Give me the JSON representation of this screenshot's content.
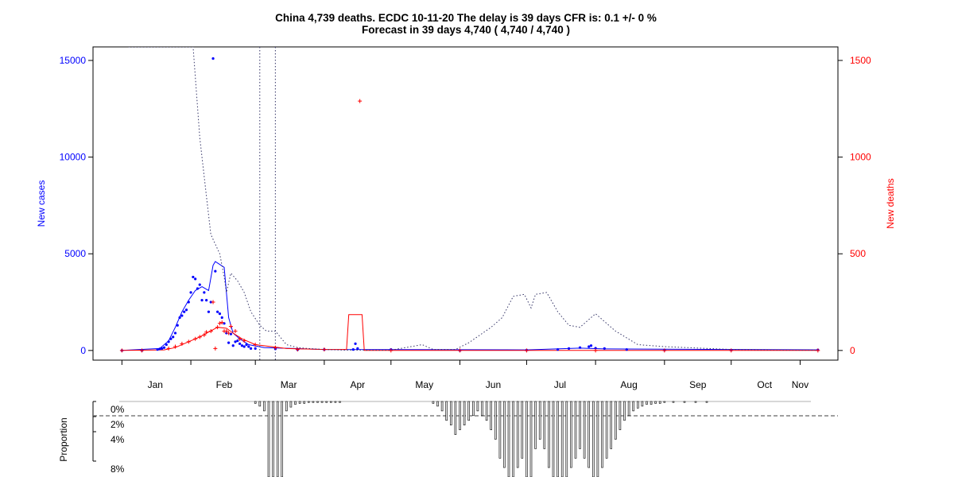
{
  "title": {
    "line1": "China 4,739 deaths. ECDC 10-11-20 The delay is 39 days CFR is: 0.1 +/- 0 %",
    "line2": "Forecast in 39 days 4,740 ( 4,740 / 4,740 )"
  },
  "colors": {
    "cases": "#0000ff",
    "deaths": "#ff0000",
    "dotted": "#333366",
    "axis": "#000000",
    "bar_fill": "#eeeeee",
    "dashed": "#666666"
  },
  "chart_data": [
    {
      "type": "scatter",
      "title": "China 4,739 deaths. ECDC 10-11-20 The delay is 39 days CFR is: 0.1 +/- 0 %",
      "subtitle": "Forecast in 39 days 4,740 ( 4,740 / 4,740 )",
      "x_type": "date",
      "x_start": "2020-01-01",
      "xlim": [
        "2019-12-19",
        "2020-11-18"
      ],
      "month_labels": [
        "Jan",
        "Feb",
        "Mar",
        "Apr",
        "May",
        "Jun",
        "Jul",
        "Aug",
        "Sep",
        "Oct",
        "Nov"
      ],
      "ylabel_left": "New cases",
      "ylabel_right": "New deaths",
      "ylim_left": [
        -500,
        15700
      ],
      "ylim_right": [
        -50,
        1570
      ],
      "yticks_left": [
        0,
        5000,
        10000,
        15000
      ],
      "yticks_right": [
        0,
        500,
        1000,
        1500
      ],
      "grid": false,
      "series": [
        {
          "name": "New cases",
          "kind": "points",
          "axis": "left",
          "x": [
            "2020-01-01",
            "2020-01-10",
            "2020-01-17",
            "2020-01-18",
            "2020-01-19",
            "2020-01-20",
            "2020-01-21",
            "2020-01-22",
            "2020-01-23",
            "2020-01-24",
            "2020-01-25",
            "2020-01-26",
            "2020-01-27",
            "2020-01-28",
            "2020-01-29",
            "2020-01-30",
            "2020-01-31",
            "2020-02-01",
            "2020-02-02",
            "2020-02-03",
            "2020-02-04",
            "2020-02-05",
            "2020-02-06",
            "2020-02-07",
            "2020-02-08",
            "2020-02-09",
            "2020-02-10",
            "2020-02-11",
            "2020-02-12",
            "2020-02-13",
            "2020-02-14",
            "2020-02-15",
            "2020-02-16",
            "2020-02-17",
            "2020-02-18",
            "2020-02-19",
            "2020-02-20",
            "2020-02-21",
            "2020-02-22",
            "2020-02-23",
            "2020-02-24",
            "2020-02-25",
            "2020-02-26",
            "2020-02-27",
            "2020-02-28",
            "2020-03-01",
            "2020-03-10",
            "2020-03-20",
            "2020-04-01",
            "2020-04-14",
            "2020-04-15",
            "2020-04-16",
            "2020-05-01",
            "2020-06-01",
            "2020-07-01",
            "2020-07-15",
            "2020-07-20",
            "2020-07-25",
            "2020-07-29",
            "2020-07-30",
            "2020-08-01",
            "2020-08-05",
            "2020-08-15",
            "2020-09-01",
            "2020-10-01",
            "2020-11-09"
          ],
          "values": [
            0,
            0,
            50,
            80,
            100,
            150,
            300,
            450,
            600,
            700,
            900,
            1300,
            1700,
            1800,
            2000,
            2100,
            2500,
            3000,
            3800,
            3700,
            3200,
            3400,
            2600,
            3000,
            2600,
            2000,
            2500,
            15100,
            4100,
            2000,
            1900,
            1700,
            1400,
            900,
            400,
            850,
            250,
            450,
            500,
            350,
            250,
            200,
            300,
            200,
            100,
            100,
            80,
            40,
            50,
            50,
            350,
            100,
            50,
            0,
            20,
            50,
            100,
            150,
            200,
            250,
            120,
            100,
            50,
            20,
            20,
            30
          ]
        },
        {
          "name": "New deaths",
          "kind": "points",
          "axis": "right",
          "x": [
            "2020-01-01",
            "2020-01-10",
            "2020-01-22",
            "2020-01-25",
            "2020-01-28",
            "2020-01-31",
            "2020-02-03",
            "2020-02-05",
            "2020-02-07",
            "2020-02-08",
            "2020-02-10",
            "2020-02-11",
            "2020-02-12",
            "2020-02-13",
            "2020-02-14",
            "2020-02-15",
            "2020-02-16",
            "2020-02-17",
            "2020-02-18",
            "2020-02-19",
            "2020-02-21",
            "2020-02-23",
            "2020-02-25",
            "2020-03-01",
            "2020-03-10",
            "2020-03-20",
            "2020-04-01",
            "2020-04-17",
            "2020-05-01",
            "2020-06-01",
            "2020-07-01",
            "2020-08-01",
            "2020-09-01",
            "2020-10-01",
            "2020-11-09"
          ],
          "values": [
            0,
            0,
            10,
            20,
            35,
            45,
            60,
            70,
            80,
            95,
            100,
            250,
            10,
            120,
            140,
            145,
            100,
            100,
            90,
            125,
            100,
            60,
            50,
            30,
            15,
            5,
            5,
            1290,
            0,
            0,
            0,
            0,
            0,
            0,
            0
          ]
        },
        {
          "name": "Cases (smoothed)",
          "kind": "line",
          "axis": "left",
          "x": [
            "2020-01-01",
            "2020-01-18",
            "2020-01-22",
            "2020-01-25",
            "2020-01-28",
            "2020-01-31",
            "2020-02-03",
            "2020-02-06",
            "2020-02-09",
            "2020-02-11",
            "2020-02-12",
            "2020-02-16",
            "2020-02-18",
            "2020-02-20",
            "2020-02-23",
            "2020-02-27",
            "2020-03-05",
            "2020-04-01",
            "2020-07-01",
            "2020-07-25",
            "2020-08-05",
            "2020-11-09"
          ],
          "values": [
            0,
            100,
            500,
            1200,
            2000,
            2600,
            3100,
            3300,
            3100,
            4400,
            4600,
            4300,
            1700,
            900,
            600,
            300,
            150,
            50,
            30,
            120,
            80,
            30
          ]
        },
        {
          "name": "Deaths (smoothed)",
          "kind": "line",
          "axis": "right",
          "x": [
            "2020-01-01",
            "2020-01-20",
            "2020-01-25",
            "2020-01-30",
            "2020-02-05",
            "2020-02-09",
            "2020-02-13",
            "2020-02-17",
            "2020-02-20",
            "2020-02-24",
            "2020-03-01",
            "2020-03-15",
            "2020-04-01",
            "2020-04-11",
            "2020-04-12",
            "2020-04-18",
            "2020-04-19",
            "2020-05-01",
            "2020-11-09"
          ],
          "values": [
            0,
            3,
            15,
            40,
            70,
            95,
            120,
            115,
            90,
            60,
            30,
            10,
            5,
            5,
            185,
            185,
            0,
            0,
            0
          ]
        },
        {
          "name": "Ratio (dotted, top)",
          "kind": "dotted",
          "axis": "left",
          "x": [
            "2020-01-04",
            "2020-01-06",
            "2020-01-10",
            "2020-01-15",
            "2020-01-20",
            "2020-01-31",
            "2020-02-02",
            "2020-02-05",
            "2020-02-08",
            "2020-02-10",
            "2020-02-12",
            "2020-02-14",
            "2020-02-16",
            "2020-02-17",
            "2020-02-19",
            "2020-02-22",
            "2020-02-25",
            "2020-02-28",
            "2020-03-03",
            "2020-03-06",
            "2020-03-10",
            "2020-03-15",
            "2020-03-20",
            "2020-03-25",
            "2020-04-01",
            "2020-04-10",
            "2020-04-20",
            "2020-05-01",
            "2020-05-10",
            "2020-05-15",
            "2020-05-20",
            "2020-05-30",
            "2020-06-05",
            "2020-06-10",
            "2020-06-15",
            "2020-06-20",
            "2020-06-25",
            "2020-06-30",
            "2020-07-03",
            "2020-07-05",
            "2020-07-10",
            "2020-07-15",
            "2020-07-20",
            "2020-07-25",
            "2020-08-01",
            "2020-08-10",
            "2020-08-20",
            "2020-09-01",
            "2020-10-01",
            "2020-11-09"
          ],
          "values": [
            15700,
            15700,
            15700,
            15700,
            15700,
            15700,
            15700,
            11000,
            8000,
            6000,
            5500,
            5000,
            3800,
            3000,
            4000,
            3600,
            3000,
            2000,
            1300,
            1000,
            1000,
            300,
            150,
            100,
            50,
            20,
            20,
            20,
            200,
            300,
            50,
            50,
            400,
            800,
            1200,
            1700,
            2800,
            2900,
            2200,
            2900,
            3000,
            2000,
            1300,
            1200,
            1900,
            1000,
            300,
            200,
            50,
            20
          ]
        },
        {
          "name": "Vertical reference",
          "kind": "vlines",
          "x": [
            "2020-03-03",
            "2020-03-10"
          ]
        }
      ]
    },
    {
      "type": "bar",
      "ylabel": "Proportion",
      "yticks": [
        "0%",
        "2%",
        "4%",
        "8%"
      ],
      "ylim": [
        0,
        8
      ],
      "reversed": true,
      "dashed_line": 1,
      "x": [
        "2020-03-01",
        "2020-03-03",
        "2020-03-05",
        "2020-03-07",
        "2020-03-09",
        "2020-03-11",
        "2020-03-13",
        "2020-03-15",
        "2020-03-17",
        "2020-03-19",
        "2020-03-21",
        "2020-03-23",
        "2020-03-25",
        "2020-03-27",
        "2020-03-29",
        "2020-03-31",
        "2020-04-02",
        "2020-04-04",
        "2020-04-06",
        "2020-04-08",
        "2020-05-20",
        "2020-05-22",
        "2020-05-24",
        "2020-05-26",
        "2020-05-28",
        "2020-05-30",
        "2020-06-01",
        "2020-06-03",
        "2020-06-05",
        "2020-06-07",
        "2020-06-09",
        "2020-06-11",
        "2020-06-13",
        "2020-06-15",
        "2020-06-17",
        "2020-06-19",
        "2020-06-21",
        "2020-06-23",
        "2020-06-25",
        "2020-06-27",
        "2020-06-29",
        "2020-07-01",
        "2020-07-03",
        "2020-07-05",
        "2020-07-07",
        "2020-07-09",
        "2020-07-11",
        "2020-07-13",
        "2020-07-15",
        "2020-07-17",
        "2020-07-19",
        "2020-07-21",
        "2020-07-23",
        "2020-07-25",
        "2020-07-27",
        "2020-07-29",
        "2020-07-31",
        "2020-08-02",
        "2020-08-04",
        "2020-08-06",
        "2020-08-08",
        "2020-08-10",
        "2020-08-12",
        "2020-08-14",
        "2020-08-16",
        "2020-08-18",
        "2020-08-20",
        "2020-08-22",
        "2020-08-24",
        "2020-08-26",
        "2020-08-28",
        "2020-08-30",
        "2020-09-01",
        "2020-09-05",
        "2020-09-10",
        "2020-09-15",
        "2020-09-20"
      ],
      "values": [
        0.2,
        0.5,
        1,
        8,
        8,
        8,
        8,
        1,
        0.6,
        0.3,
        0.2,
        0.2,
        0.1,
        0.1,
        0.1,
        0.1,
        0.1,
        0.1,
        0.1,
        0.1,
        0.2,
        0.5,
        1,
        2,
        2.5,
        3.5,
        3,
        2.5,
        2,
        1.5,
        1,
        1.5,
        2,
        3,
        4,
        6,
        7,
        8,
        8,
        7,
        6,
        8,
        8,
        5,
        4,
        5,
        7,
        8,
        8,
        8,
        8,
        7,
        6,
        5,
        6,
        7,
        8,
        8,
        7,
        6,
        5,
        4,
        3,
        2,
        1.5,
        1,
        0.7,
        0.5,
        0.3,
        0.3,
        0.2,
        0.2,
        0.1,
        0.1,
        0.1,
        0.1,
        0.1
      ]
    }
  ]
}
